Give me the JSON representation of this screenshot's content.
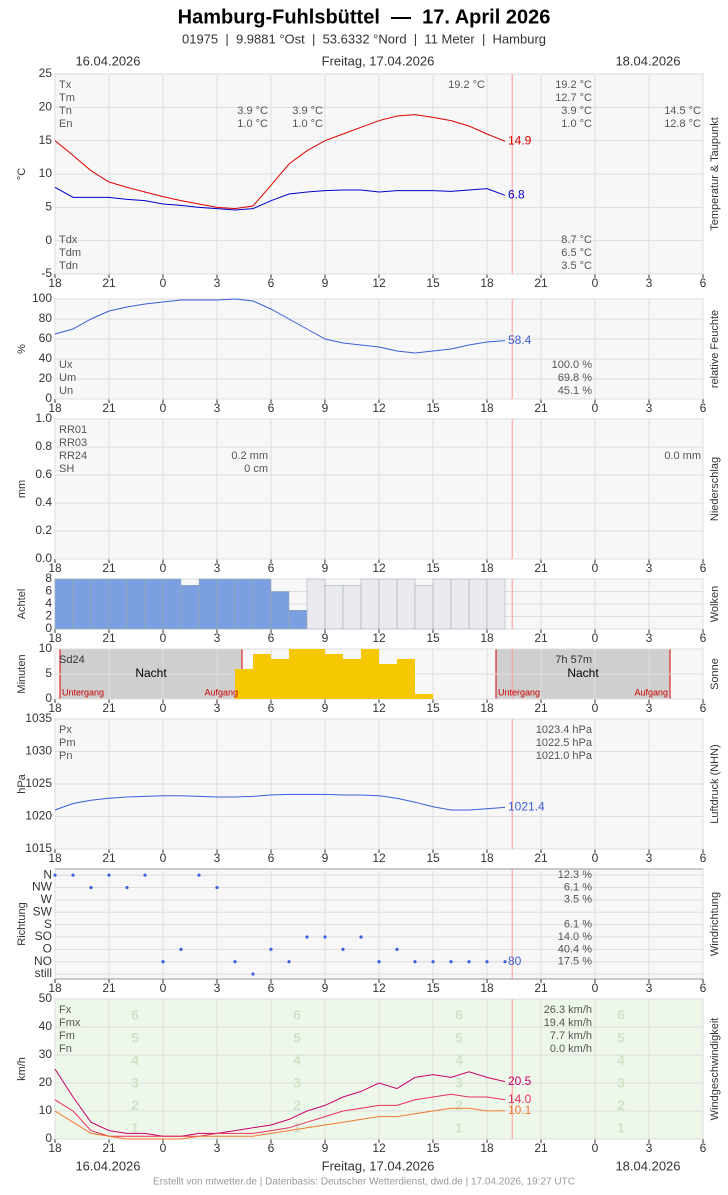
{
  "header": {
    "title": "Hamburg-Fuhlsbüttel  —  17. April 2026",
    "subtitle": "01975  |  9.9881 °Ost  |  53.6332 °Nord  |  11 Meter  |  Hamburg",
    "date_left": "16.04.2026",
    "date_center": "Freitag, 17.04.2026",
    "date_right": "18.04.2026"
  },
  "footer": "Erstellt von mtwetter.de | Datenbasis: Deutscher Wetterdienst, dwd.de | 17.04.2026, 19:27 UTC",
  "time": {
    "x": [
      0,
      1,
      2,
      3,
      4,
      5,
      6,
      7,
      8,
      9,
      10,
      11,
      12,
      13,
      14,
      15,
      16,
      17,
      18,
      19,
      20,
      21,
      22,
      23,
      24,
      25
    ],
    "xlim": [
      0,
      36
    ],
    "xticks": [
      {
        "value": 0,
        "label": "18"
      },
      {
        "value": 3,
        "label": "21"
      },
      {
        "value": 6,
        "label": "0"
      },
      {
        "value": 9,
        "label": "3"
      },
      {
        "value": 12,
        "label": "6"
      },
      {
        "value": 15,
        "label": "9"
      },
      {
        "value": 18,
        "label": "12"
      },
      {
        "value": 21,
        "label": "15"
      },
      {
        "value": 24,
        "label": "18"
      },
      {
        "value": 27,
        "label": "21"
      },
      {
        "value": 30,
        "label": "0"
      },
      {
        "value": 33,
        "label": "3"
      },
      {
        "value": 36,
        "label": "6"
      }
    ]
  },
  "chart_data": [
    {
      "type": "line",
      "ylabel": "°C",
      "side_label": "Temperatur & Taupunkt",
      "ylim": [
        -5,
        25
      ],
      "yticks": [
        -5,
        0,
        5,
        10,
        15,
        20,
        25
      ],
      "series": [
        {
          "color": "#e00000",
          "values": [
            15,
            12.8,
            10.5,
            8.8,
            8,
            7.3,
            6.6,
            6,
            5.5,
            5,
            4.8,
            5.2,
            8.3,
            11.5,
            13.5,
            15,
            16,
            17,
            18,
            18.7,
            18.9,
            18.5,
            18,
            17.2,
            16,
            14.9
          ]
        },
        {
          "color": "#0000cc",
          "values": [
            8,
            6.5,
            6.5,
            6.5,
            6.2,
            6,
            5.5,
            5.3,
            5,
            4.8,
            4.6,
            4.8,
            6,
            7,
            7.3,
            7.5,
            7.6,
            7.6,
            7.3,
            7.5,
            7.5,
            7.5,
            7.4,
            7.6,
            7.8,
            6.8
          ]
        }
      ],
      "stats": {
        "rows": [
          "Tx",
          "Tm",
          "Tn",
          "En"
        ],
        "cols": [
          [
            null,
            null,
            "3.9 °C",
            "1.0 °C"
          ],
          [
            null,
            null,
            "3.9 °C",
            "1.0 °C"
          ],
          [
            "19.2 °C",
            null,
            null,
            null
          ],
          [
            "19.2 °C",
            "12.7 °C",
            "3.9 °C",
            "1.0 °C"
          ],
          [
            null,
            null,
            "14.5 °C",
            "12.8 °C"
          ]
        ]
      },
      "stats2": {
        "rows": [
          "Tdx",
          "Tdm",
          "Tdn"
        ],
        "cols": [
          [
            "8.7 °C",
            "6.5 °C",
            "3.5 °C"
          ]
        ]
      }
    },
    {
      "type": "line",
      "ylabel": "%",
      "side_label": "relative Feuchte",
      "ylim": [
        0,
        100
      ],
      "yticks": [
        0,
        20,
        40,
        60,
        80,
        100
      ],
      "series": [
        {
          "color": "#3a5fd8",
          "values": [
            65,
            70,
            80,
            88,
            92,
            95,
            97,
            99,
            99,
            99,
            100,
            98,
            90,
            80,
            70,
            60,
            56,
            54,
            52,
            48,
            46,
            48,
            50,
            54,
            57,
            58.4
          ]
        }
      ],
      "stats": {
        "rows": [
          "Ux",
          "Um",
          "Un"
        ],
        "cols": [
          [
            "100.0 %",
            "69.8 %",
            "45.1 %"
          ]
        ]
      }
    },
    {
      "type": "line",
      "ylabel": "mm",
      "side_label": "Niederschlag",
      "ylim": [
        0,
        1
      ],
      "yticks": [
        {
          "value": 0,
          "label": "0.0"
        },
        0.2,
        0.4,
        0.6,
        0.8,
        {
          "value": 1,
          "label": "1.0"
        }
      ],
      "series": [],
      "stats": {
        "rows": [
          "RR01",
          "RR03",
          "RR24",
          "SH"
        ],
        "cols": [
          [
            null,
            null,
            "0.2 mm",
            "0 cm"
          ],
          [
            null,
            null,
            "0.0 mm",
            null
          ]
        ]
      }
    },
    {
      "type": "bar",
      "ylabel": "Achtel",
      "side_label": "Wolken",
      "ylim": [
        0,
        8
      ],
      "yticks": [
        0,
        2,
        4,
        6,
        8
      ],
      "series": [
        {
          "color": "#7b9fe0",
          "values": [
            8,
            8,
            8,
            8,
            8,
            8,
            8,
            7,
            8,
            8,
            8,
            8,
            6,
            3,
            null,
            null,
            null,
            null,
            null,
            null,
            null,
            null,
            null,
            null,
            null,
            null
          ]
        },
        {
          "color": "#e9e9ef",
          "values": [
            null,
            null,
            null,
            null,
            null,
            null,
            null,
            null,
            null,
            null,
            null,
            null,
            null,
            null,
            8,
            7,
            7,
            8,
            8,
            8,
            7,
            8,
            8,
            8,
            8,
            null
          ]
        }
      ]
    },
    {
      "type": "bar",
      "ylabel": "Minuten",
      "side_label": "Sonne",
      "ylim": [
        0,
        10
      ],
      "yticks": [
        0,
        5,
        10
      ],
      "series": [
        {
          "color": "#f5c800",
          "values": [
            0,
            0,
            0,
            0,
            0,
            0,
            0,
            0,
            0,
            0,
            6,
            9,
            8,
            10,
            10,
            9,
            8,
            10,
            7,
            8,
            1,
            null,
            null,
            null,
            null,
            null
          ]
        }
      ],
      "sd_label": "Sd24",
      "sd_value": "7h 57m",
      "night": "Nacht",
      "sunset": "Untergang",
      "sunrise": "Aufgang"
    },
    {
      "type": "line",
      "ylabel": "hPa",
      "side_label": "Luftdruck (NHN)",
      "ylim": [
        1015,
        1035
      ],
      "yticks": [
        1015,
        1020,
        1025,
        1030,
        1035
      ],
      "series": [
        {
          "color": "#3a5fd8",
          "values": [
            1021,
            1022,
            1022.5,
            1022.8,
            1023,
            1023.1,
            1023.2,
            1023.2,
            1023.1,
            1023,
            1023,
            1023.1,
            1023.3,
            1023.4,
            1023.4,
            1023.4,
            1023.3,
            1023.3,
            1023.2,
            1022.8,
            1022.2,
            1021.5,
            1021,
            1021,
            1021.2,
            1021.4
          ]
        }
      ],
      "stats": {
        "rows": [
          "Px",
          "Pm",
          "Pn"
        ],
        "cols": [
          [
            "1023.4 hPa",
            "1022.5 hPa",
            "1021.0 hPa"
          ]
        ]
      }
    },
    {
      "type": "scatter",
      "ylabel": "Richtung",
      "side_label": "Windrichtung",
      "ylim": [
        -0.4,
        8.5
      ],
      "yticks": [
        {
          "value": 8,
          "label": "N"
        },
        {
          "value": 7,
          "label": "NW"
        },
        {
          "value": 6,
          "label": "W"
        },
        {
          "value": 5,
          "label": "SW"
        },
        {
          "value": 4,
          "label": "S"
        },
        {
          "value": 3,
          "label": "SO"
        },
        {
          "value": 2,
          "label": "O"
        },
        {
          "value": 1,
          "label": "NO"
        },
        {
          "value": 0,
          "label": "still"
        }
      ],
      "series": [
        {
          "color": "#3a5fd8",
          "values": [
            8,
            8,
            7,
            8,
            7,
            8,
            1,
            2,
            8,
            7,
            1,
            0,
            2,
            1,
            3,
            3,
            2,
            3,
            1,
            2,
            1,
            1,
            1,
            1,
            1,
            1
          ]
        }
      ],
      "annotation": "80",
      "stats": {
        "rows": [],
        "cols": [
          [
            "12.3 %",
            "6.1 %",
            "3.5 %",
            null,
            "6.1 %",
            "14.0 %",
            "40.4 %",
            "17.5 %"
          ]
        ]
      }
    },
    {
      "type": "line",
      "ylabel": "km/h",
      "side_label": "Windgeschwindigkeit",
      "ylim": [
        0,
        50
      ],
      "yticks": [
        0,
        10,
        20,
        30,
        40,
        50
      ],
      "series": [
        {
          "color": "#c8006a",
          "values": [
            25,
            15,
            6,
            3,
            2,
            2,
            1,
            1,
            2,
            2,
            3,
            4,
            5,
            7,
            10,
            12,
            15,
            17,
            20,
            18,
            22,
            23,
            22,
            24,
            22,
            20.5
          ]
        },
        {
          "color": "#e8305a",
          "values": [
            14,
            10,
            3,
            1,
            1,
            1,
            1,
            1,
            1,
            2,
            2,
            2,
            3,
            4,
            6,
            8,
            10,
            11,
            12,
            12,
            14,
            15,
            16,
            15,
            15,
            14
          ],
          "value_labels": [
            null,
            null,
            null,
            null,
            null,
            null,
            null,
            null,
            null,
            null,
            null,
            null,
            null,
            null,
            null,
            null,
            null,
            null,
            null,
            null,
            null,
            null,
            null,
            null,
            null,
            "14.0"
          ]
        },
        {
          "color": "#f07830",
          "values": [
            10,
            6,
            2,
            1,
            0,
            0,
            0,
            0,
            1,
            1,
            1,
            1,
            2,
            3,
            4,
            5,
            6,
            7,
            8,
            8,
            9,
            10,
            11,
            11,
            10,
            10.1
          ]
        }
      ],
      "bft_labels": [
        "6",
        "5",
        "4",
        "3",
        "2",
        "1"
      ],
      "stats": {
        "rows": [
          "Fx",
          "Fmx",
          "Fm",
          "Fn"
        ],
        "cols": [
          [
            "26.3 km/h",
            "19.4 km/h",
            "7.7 km/h",
            "0.0 km/h"
          ]
        ]
      }
    }
  ]
}
